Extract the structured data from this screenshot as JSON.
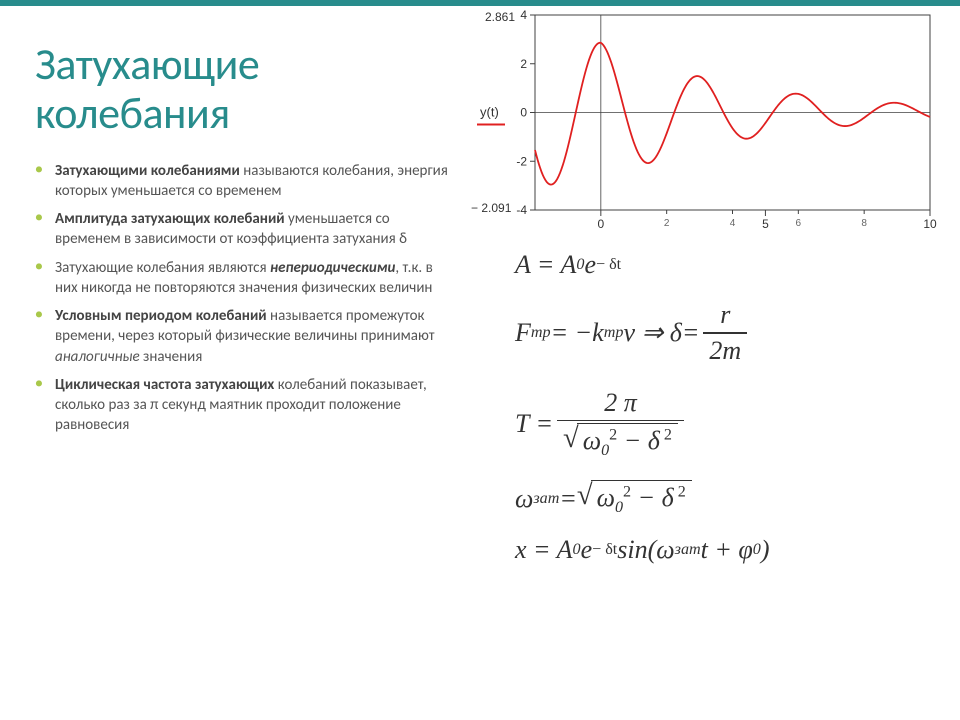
{
  "accent_color": "#288c8c",
  "bullet_color": "#a9c84a",
  "text_color": "#555555",
  "title": "Затухающие колебания",
  "bullets": [
    {
      "pre": "Затухающими колебаниями ",
      "post": "называются колебания, энергия которых уменьшается со временем"
    },
    {
      "pre": "Амплитуда затухающих колебаний ",
      "post": "уменьшается со временем в зависимости от коэффициента затухания δ"
    },
    {
      "pre_plain": "Затухающие колебания являются ",
      "mid_bi": "непериодическими",
      "post": ", т.к. в них никогда не повторяются значения физических величин"
    },
    {
      "pre": "Условным периодом колебаний ",
      "post_a": "называется промежуток времени, через который физические величины принимают ",
      "post_i": "аналогичные",
      "post_b": " значения"
    },
    {
      "pre": "Циклическая частота затухающих ",
      "post": "колебаний показывает, сколько раз за π секунд маятник проходит положение равновесия"
    }
  ],
  "chart": {
    "ylabel": "y(t)",
    "ymax_label": "2.861",
    "ymin_label": "− 2.091",
    "xlim": [
      -2,
      10
    ],
    "ylim": [
      -4,
      4
    ],
    "xticks_major": [
      0,
      5,
      10
    ],
    "xticks_minor": [
      2,
      4,
      6,
      8
    ],
    "yticks": [
      -4,
      -2,
      0,
      2,
      4
    ],
    "line_color": "#e02020",
    "axis_color": "#404040",
    "grid_color": "#cccccc",
    "tick_font_size": 12,
    "amplitude0": 2.861,
    "decay": 0.22,
    "omega": 2.1,
    "phase": 1.6
  },
  "formulas": {
    "f1": {
      "lhs": "A = A",
      "sub0": "0",
      "exp_e": "e",
      "exp": "− δt"
    },
    "f2": {
      "F": "F",
      "Fsub": "mp",
      "eq1": " = −k",
      "ksub": "mp",
      "v": "v ⇒ δ",
      "delta_eq": "=",
      "num": "r",
      "den": "2m"
    },
    "f3": {
      "T": "T =",
      "num1": "2 π",
      "den_pre": "ω",
      "den_sub": "0",
      "den_sup": "2",
      "den_mid": " − δ",
      "den_sup2": " 2"
    },
    "f4": {
      "w": "ω",
      "wsub": "зат",
      "eq": " = ",
      "b_pre": "ω",
      "b_sub": "0",
      "b_sup": "2",
      "b_mid": " − δ",
      "b_sup2": " 2"
    },
    "f5": {
      "x": "x = A",
      "sub0": "0",
      "e": "e",
      "exp": "− δt",
      "sin": " sin(",
      "w": "ω",
      "wsub": "зат",
      "tail": "t + φ",
      "tailsub": "0",
      "close": ")"
    }
  }
}
